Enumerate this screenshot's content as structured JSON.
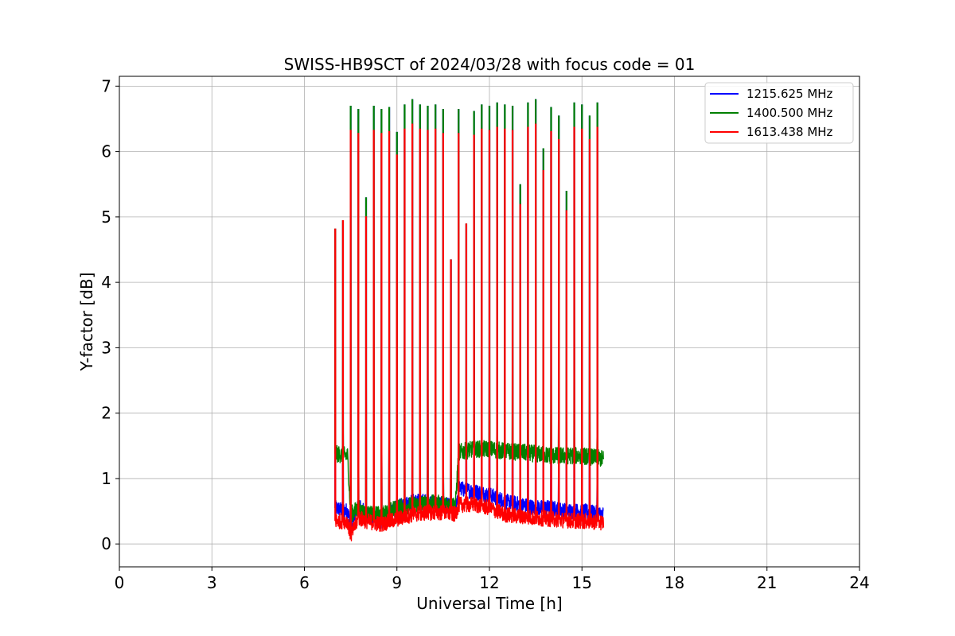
{
  "chart_data": {
    "type": "line",
    "title": "SWISS-HB9SCT of 2024/03/28 with focus code = 01",
    "xlabel": "Universal Time [h]",
    "ylabel": "Y-factor [dB]",
    "xlim": [
      0,
      24
    ],
    "ylim": [
      -0.35,
      7.15
    ],
    "xticks": [
      0,
      3,
      6,
      9,
      12,
      15,
      18,
      21,
      24
    ],
    "xtick_labels": [
      "0",
      "3",
      "6",
      "9",
      "12",
      "15",
      "18",
      "21",
      "24"
    ],
    "yticks": [
      0,
      1,
      2,
      3,
      4,
      5,
      6,
      7
    ],
    "ytick_labels": [
      "0",
      "1",
      "2",
      "3",
      "4",
      "5",
      "6",
      "7"
    ],
    "grid": true,
    "legend_position": "top-right",
    "x_range_data": [
      7.0,
      15.7
    ],
    "spikes": [
      {
        "x": 7.0,
        "peak": 4.82
      },
      {
        "x": 7.25,
        "peak": 4.95
      },
      {
        "x": 7.5,
        "peak": 6.7
      },
      {
        "x": 7.75,
        "peak": 6.65
      },
      {
        "x": 8.0,
        "peak": 5.3
      },
      {
        "x": 8.25,
        "peak": 6.7
      },
      {
        "x": 8.5,
        "peak": 6.65
      },
      {
        "x": 8.75,
        "peak": 6.68
      },
      {
        "x": 9.0,
        "peak": 6.3
      },
      {
        "x": 9.25,
        "peak": 6.72
      },
      {
        "x": 9.5,
        "peak": 6.8
      },
      {
        "x": 9.75,
        "peak": 6.72
      },
      {
        "x": 10.0,
        "peak": 6.7
      },
      {
        "x": 10.25,
        "peak": 6.72
      },
      {
        "x": 10.5,
        "peak": 6.65
      },
      {
        "x": 10.75,
        "peak": 4.35
      },
      {
        "x": 11.0,
        "peak": 6.65
      },
      {
        "x": 11.25,
        "peak": 4.9
      },
      {
        "x": 11.5,
        "peak": 6.62
      },
      {
        "x": 11.75,
        "peak": 6.72
      },
      {
        "x": 12.0,
        "peak": 6.7
      },
      {
        "x": 12.25,
        "peak": 6.75
      },
      {
        "x": 12.5,
        "peak": 6.72
      },
      {
        "x": 12.75,
        "peak": 6.7
      },
      {
        "x": 13.0,
        "peak": 5.5
      },
      {
        "x": 13.25,
        "peak": 6.75
      },
      {
        "x": 13.5,
        "peak": 6.8
      },
      {
        "x": 13.75,
        "peak": 6.05
      },
      {
        "x": 14.0,
        "peak": 6.68
      },
      {
        "x": 14.25,
        "peak": 6.55
      },
      {
        "x": 14.5,
        "peak": 5.4
      },
      {
        "x": 14.75,
        "peak": 6.75
      },
      {
        "x": 15.0,
        "peak": 6.72
      },
      {
        "x": 15.25,
        "peak": 6.55
      },
      {
        "x": 15.5,
        "peak": 6.75
      }
    ],
    "series": [
      {
        "name": "1215.625 MHz",
        "color": "#0000ff",
        "baseline": [
          [
            7.0,
            0.55
          ],
          [
            7.4,
            0.5
          ],
          [
            7.5,
            0.3
          ],
          [
            7.75,
            0.6
          ],
          [
            8.0,
            0.45
          ],
          [
            8.5,
            0.35
          ],
          [
            9.0,
            0.55
          ],
          [
            9.5,
            0.65
          ],
          [
            10.0,
            0.65
          ],
          [
            10.5,
            0.6
          ],
          [
            10.9,
            0.55
          ],
          [
            11.0,
            0.85
          ],
          [
            11.5,
            0.8
          ],
          [
            12.0,
            0.75
          ],
          [
            12.5,
            0.65
          ],
          [
            13.0,
            0.6
          ],
          [
            13.5,
            0.55
          ],
          [
            14.0,
            0.55
          ],
          [
            14.5,
            0.5
          ],
          [
            15.0,
            0.5
          ],
          [
            15.7,
            0.45
          ]
        ],
        "noise": 0.12
      },
      {
        "name": "1400.500 MHz",
        "color": "#008000",
        "baseline": [
          [
            7.0,
            1.38
          ],
          [
            7.4,
            1.35
          ],
          [
            7.5,
            0.45
          ],
          [
            7.75,
            0.55
          ],
          [
            8.0,
            0.45
          ],
          [
            8.5,
            0.45
          ],
          [
            9.0,
            0.55
          ],
          [
            9.5,
            0.6
          ],
          [
            10.0,
            0.62
          ],
          [
            10.5,
            0.62
          ],
          [
            10.9,
            0.6
          ],
          [
            11.0,
            1.4
          ],
          [
            11.5,
            1.45
          ],
          [
            12.0,
            1.45
          ],
          [
            12.5,
            1.42
          ],
          [
            13.0,
            1.4
          ],
          [
            13.5,
            1.38
          ],
          [
            14.0,
            1.35
          ],
          [
            14.5,
            1.35
          ],
          [
            15.0,
            1.35
          ],
          [
            15.7,
            1.3
          ]
        ],
        "noise": 0.13
      },
      {
        "name": "1613.438 MHz",
        "color": "#ff0000",
        "baseline": [
          [
            7.0,
            0.35
          ],
          [
            7.4,
            0.35
          ],
          [
            7.5,
            0.12
          ],
          [
            7.75,
            0.4
          ],
          [
            8.0,
            0.35
          ],
          [
            8.5,
            0.3
          ],
          [
            9.0,
            0.38
          ],
          [
            9.5,
            0.45
          ],
          [
            10.0,
            0.48
          ],
          [
            10.5,
            0.48
          ],
          [
            10.9,
            0.45
          ],
          [
            11.0,
            0.6
          ],
          [
            11.5,
            0.6
          ],
          [
            12.0,
            0.55
          ],
          [
            12.5,
            0.45
          ],
          [
            13.0,
            0.42
          ],
          [
            13.5,
            0.4
          ],
          [
            14.0,
            0.38
          ],
          [
            14.5,
            0.36
          ],
          [
            15.0,
            0.35
          ],
          [
            15.7,
            0.33
          ]
        ],
        "noise": 0.12
      }
    ]
  }
}
